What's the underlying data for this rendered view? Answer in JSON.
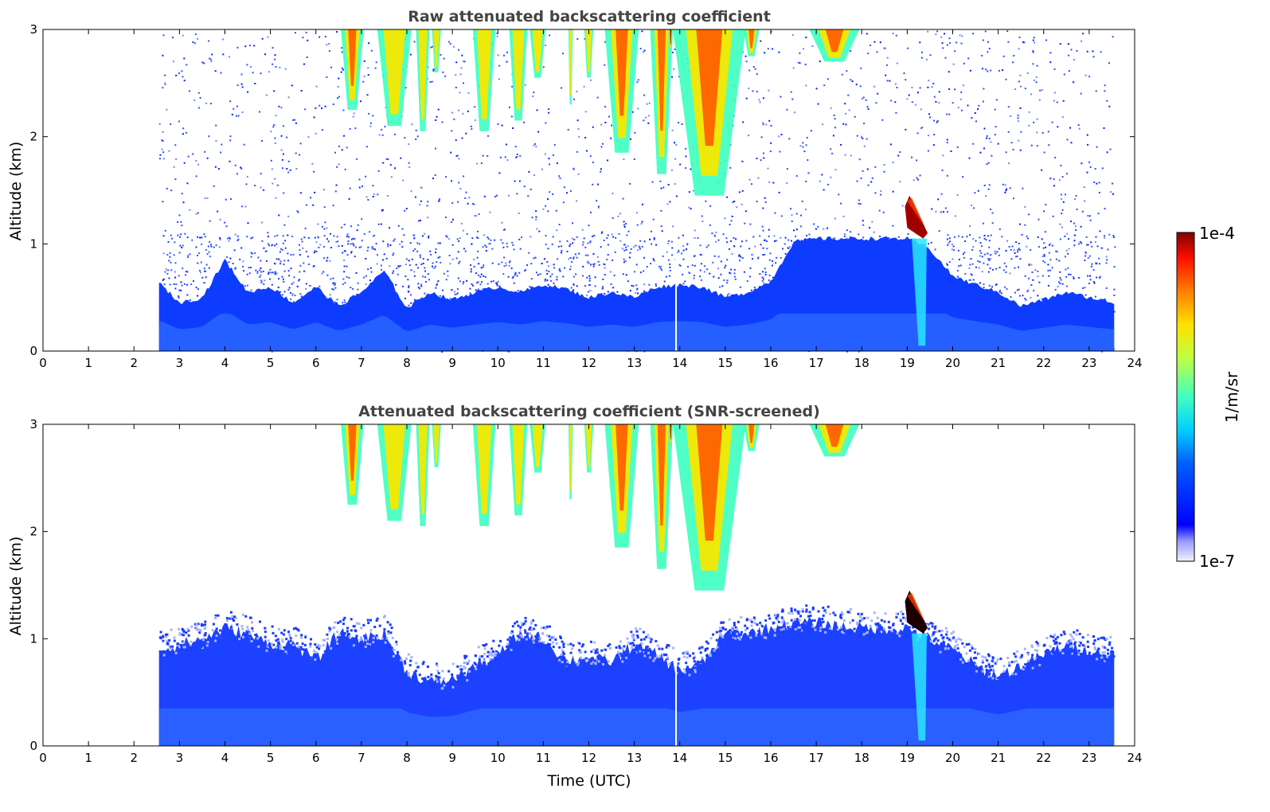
{
  "figure": {
    "colorbar": {
      "max_label": "1e-4",
      "min_label": "1e-7",
      "unit_label": "1/m/sr",
      "colormap": "jet"
    }
  },
  "chart_data": [
    {
      "type": "heatmap",
      "id": "raw",
      "title": "Raw attenuated backscattering coefficient",
      "xlabel": "",
      "ylabel": "Altitude (km)",
      "xlim": [
        0,
        24
      ],
      "ylim": [
        0,
        3
      ],
      "xticks": [
        "0",
        "1",
        "2",
        "3",
        "4",
        "5",
        "6",
        "7",
        "8",
        "9",
        "10",
        "11",
        "12",
        "13",
        "14",
        "15",
        "16",
        "17",
        "18",
        "19",
        "20",
        "21",
        "22",
        "23",
        "24"
      ],
      "yticks": [
        "0",
        "1",
        "2",
        "3"
      ],
      "data_time_range": [
        2.55,
        23.55
      ],
      "boundary_layer_top_km": [
        [
          2.6,
          0.62
        ],
        [
          3.0,
          0.45
        ],
        [
          3.5,
          0.5
        ],
        [
          4.0,
          0.85
        ],
        [
          4.5,
          0.55
        ],
        [
          5.0,
          0.6
        ],
        [
          5.5,
          0.45
        ],
        [
          6.0,
          0.6
        ],
        [
          6.5,
          0.42
        ],
        [
          7.0,
          0.55
        ],
        [
          7.5,
          0.75
        ],
        [
          8.0,
          0.4
        ],
        [
          8.5,
          0.55
        ],
        [
          9.0,
          0.48
        ],
        [
          9.5,
          0.55
        ],
        [
          10.0,
          0.6
        ],
        [
          10.5,
          0.55
        ],
        [
          11.0,
          0.62
        ],
        [
          11.5,
          0.58
        ],
        [
          12.0,
          0.5
        ],
        [
          12.5,
          0.55
        ],
        [
          13.0,
          0.5
        ],
        [
          13.5,
          0.6
        ],
        [
          14.0,
          0.62
        ],
        [
          14.5,
          0.6
        ],
        [
          15.0,
          0.5
        ],
        [
          15.5,
          0.55
        ],
        [
          16.0,
          0.65
        ],
        [
          16.5,
          1.02
        ],
        [
          17.0,
          1.05
        ],
        [
          17.5,
          1.05
        ],
        [
          18.0,
          1.05
        ],
        [
          18.5,
          1.05
        ],
        [
          19.0,
          1.05
        ],
        [
          19.5,
          0.95
        ],
        [
          20.0,
          0.7
        ],
        [
          20.5,
          0.62
        ],
        [
          21.0,
          0.55
        ],
        [
          21.5,
          0.42
        ],
        [
          22.0,
          0.48
        ],
        [
          22.5,
          0.55
        ],
        [
          23.0,
          0.5
        ],
        [
          23.55,
          0.45
        ]
      ],
      "clouds": [
        {
          "t0": 6.55,
          "t1": 7.05,
          "base_km": 2.25,
          "peak": 0.8
        },
        {
          "t0": 7.35,
          "t1": 8.1,
          "base_km": 2.1,
          "peak": 0.55
        },
        {
          "t0": 8.2,
          "t1": 8.5,
          "base_km": 2.05,
          "peak": 0.45
        },
        {
          "t0": 8.55,
          "t1": 8.75,
          "base_km": 2.6,
          "peak": 0.4
        },
        {
          "t0": 9.45,
          "t1": 9.95,
          "base_km": 2.05,
          "peak": 0.5
        },
        {
          "t0": 10.25,
          "t1": 10.65,
          "base_km": 2.15,
          "peak": 0.55
        },
        {
          "t0": 10.7,
          "t1": 11.05,
          "base_km": 2.55,
          "peak": 0.45
        },
        {
          "t0": 11.55,
          "t1": 11.65,
          "base_km": 2.3,
          "peak": 0.35
        },
        {
          "t0": 11.9,
          "t1": 12.1,
          "base_km": 2.55,
          "peak": 0.4
        },
        {
          "t0": 12.35,
          "t1": 13.1,
          "base_km": 1.85,
          "peak": 0.75
        },
        {
          "t0": 13.35,
          "t1": 13.85,
          "base_km": 1.65,
          "peak": 0.7
        },
        {
          "t0": 13.75,
          "t1": 13.85,
          "base_km": 2.8,
          "peak": 1.0
        },
        {
          "t0": 13.85,
          "t1": 15.45,
          "base_km": 1.45,
          "peak": 0.8
        },
        {
          "t0": 15.4,
          "t1": 15.75,
          "base_km": 2.75,
          "peak": 0.6
        },
        {
          "t0": 16.85,
          "t1": 17.95,
          "base_km": 2.7,
          "peak": 0.65
        }
      ],
      "dense_feature": {
        "t0": 18.95,
        "t1": 19.45,
        "top_km": 1.45,
        "base_km": 1.05,
        "fallstreak_bottom_km": 0.05
      }
    },
    {
      "type": "heatmap",
      "id": "snr",
      "title": "Attenuated backscattering coefficient (SNR-screened)",
      "xlabel": "Time (UTC)",
      "ylabel": "Altitude (km)",
      "xlim": [
        0,
        24
      ],
      "ylim": [
        0,
        3
      ],
      "xticks": [
        "0",
        "1",
        "2",
        "3",
        "4",
        "5",
        "6",
        "7",
        "8",
        "9",
        "10",
        "11",
        "12",
        "13",
        "14",
        "15",
        "16",
        "17",
        "18",
        "19",
        "20",
        "21",
        "22",
        "23",
        "24"
      ],
      "yticks": [
        "0",
        "1",
        "2",
        "3"
      ],
      "data_time_range": [
        2.55,
        23.55
      ],
      "screened_aerosol_top_km": [
        [
          2.6,
          0.9
        ],
        [
          3.5,
          1.0
        ],
        [
          4.0,
          1.1
        ],
        [
          4.5,
          1.05
        ],
        [
          5.0,
          0.95
        ],
        [
          5.5,
          0.95
        ],
        [
          6.0,
          0.8
        ],
        [
          6.5,
          1.05
        ],
        [
          7.0,
          1.0
        ],
        [
          7.5,
          1.05
        ],
        [
          8.0,
          0.7
        ],
        [
          8.5,
          0.6
        ],
        [
          9.0,
          0.62
        ],
        [
          9.5,
          0.75
        ],
        [
          10.0,
          0.85
        ],
        [
          10.5,
          1.05
        ],
        [
          11.0,
          1.0
        ],
        [
          11.5,
          0.8
        ],
        [
          12.0,
          0.82
        ],
        [
          12.5,
          0.78
        ],
        [
          13.0,
          0.95
        ],
        [
          13.5,
          0.85
        ],
        [
          14.0,
          0.7
        ],
        [
          14.5,
          0.78
        ],
        [
          15.0,
          1.05
        ],
        [
          15.5,
          1.05
        ],
        [
          16.0,
          1.1
        ],
        [
          16.5,
          1.15
        ],
        [
          17.0,
          1.15
        ],
        [
          17.5,
          1.12
        ],
        [
          18.0,
          1.1
        ],
        [
          18.5,
          1.1
        ],
        [
          19.0,
          1.1
        ],
        [
          19.5,
          1.0
        ],
        [
          20.0,
          0.9
        ],
        [
          20.5,
          0.75
        ],
        [
          21.0,
          0.65
        ],
        [
          21.5,
          0.75
        ],
        [
          22.0,
          0.85
        ],
        [
          22.5,
          0.95
        ],
        [
          23.0,
          0.9
        ],
        [
          23.55,
          0.85
        ]
      ]
    }
  ]
}
